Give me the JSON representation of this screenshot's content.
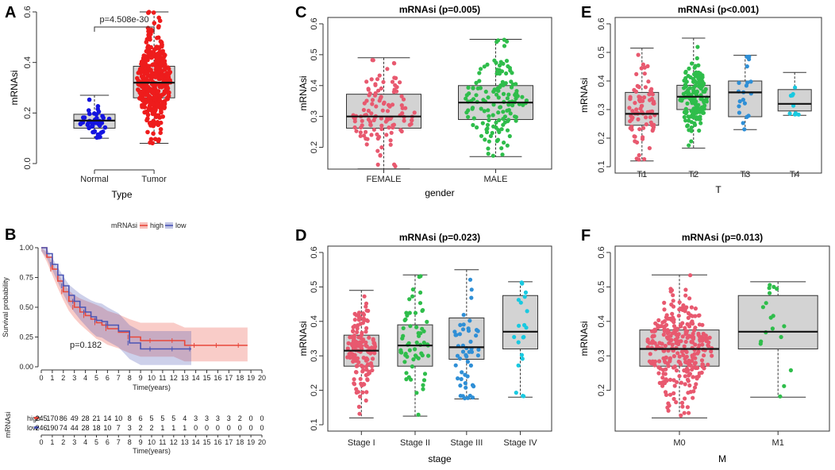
{
  "chart_data": [
    {
      "id": "A",
      "panel_label": "A",
      "type": "boxplot",
      "title": "",
      "xlabel": "Type",
      "ylabel": "mRNAsi",
      "ylim": [
        0,
        0.6
      ],
      "yticks": [
        0.0,
        0.2,
        0.4,
        0.6
      ],
      "annotation": "p=4.508e-30",
      "groups": [
        {
          "name": "Normal",
          "color": "#1515e0",
          "q1": 0.14,
          "median": 0.17,
          "q3": 0.195,
          "min": 0.1,
          "max": 0.27,
          "n": 45
        },
        {
          "name": "Tumor",
          "color": "#ee1c1c",
          "q1": 0.26,
          "median": 0.32,
          "q3": 0.385,
          "min": 0.08,
          "max": 0.6,
          "n": 420
        }
      ]
    },
    {
      "id": "C",
      "panel_label": "C",
      "type": "boxplot",
      "title": "mRNAsi (p=0.005)",
      "xlabel": "gender",
      "ylabel": "mRNAsi",
      "ylim": [
        0.15,
        0.6
      ],
      "yticks": [
        0.2,
        0.3,
        0.4,
        0.5,
        0.6
      ],
      "groups": [
        {
          "name": "FEMALE",
          "color": "#e8596f",
          "q1": 0.262,
          "median": 0.3,
          "q3": 0.372,
          "min": 0.13,
          "max": 0.49,
          "n": 120
        },
        {
          "name": "MALE",
          "color": "#2fbd4b",
          "q1": 0.29,
          "median": 0.345,
          "q3": 0.4,
          "min": 0.17,
          "max": 0.55,
          "n": 140
        }
      ]
    },
    {
      "id": "E",
      "panel_label": "E",
      "type": "boxplot",
      "title": "mRNAsi (p<0.001)",
      "xlabel": "T",
      "ylabel": "mRNAsi",
      "ylim": [
        0.1,
        0.6
      ],
      "yticks": [
        0.1,
        0.2,
        0.3,
        0.4,
        0.5,
        0.6
      ],
      "groups": [
        {
          "name": "T1",
          "color": "#e8596f",
          "q1": 0.245,
          "median": 0.285,
          "q3": 0.36,
          "min": 0.12,
          "max": 0.515,
          "n": 80
        },
        {
          "name": "T2",
          "color": "#2fbd4b",
          "q1": 0.3,
          "median": 0.345,
          "q3": 0.385,
          "min": 0.165,
          "max": 0.55,
          "n": 150
        },
        {
          "name": "T3",
          "color": "#2f8fd6",
          "q1": 0.275,
          "median": 0.36,
          "q3": 0.4,
          "min": 0.23,
          "max": 0.49,
          "n": 20
        },
        {
          "name": "T4",
          "color": "#19c9e0",
          "q1": 0.295,
          "median": 0.32,
          "q3": 0.37,
          "min": 0.28,
          "max": 0.43,
          "n": 10
        }
      ]
    },
    {
      "id": "B",
      "panel_label": "B",
      "type": "line",
      "title": "",
      "xlabel": "Time(years)",
      "ylabel": "Survival probability",
      "xlim": [
        0,
        20
      ],
      "ylim": [
        0,
        1
      ],
      "xticks": [
        0,
        1,
        2,
        3,
        4,
        5,
        6,
        7,
        8,
        9,
        10,
        11,
        12,
        13,
        14,
        15,
        16,
        17,
        18,
        19,
        20
      ],
      "yticks": [
        "0.00",
        "0.25",
        "0.50",
        "0.75",
        "1.00"
      ],
      "annotation": "p=0.182",
      "legend_title": "mRNAsi",
      "legend": [
        "high",
        "low"
      ],
      "series": [
        {
          "name": "high",
          "color": "#e8473a",
          "x": [
            0,
            0.5,
            1,
            1.5,
            2,
            2.5,
            3,
            3.5,
            4,
            4.5,
            5,
            5.5,
            6,
            7,
            8,
            9,
            10,
            11,
            12,
            13,
            14,
            15,
            16,
            17,
            18,
            18.7
          ],
          "y": [
            1,
            0.92,
            0.82,
            0.72,
            0.63,
            0.55,
            0.5,
            0.46,
            0.43,
            0.4,
            0.37,
            0.35,
            0.32,
            0.29,
            0.25,
            0.22,
            0.22,
            0.22,
            0.22,
            0.18,
            0.18,
            0.18,
            0.18,
            0.18,
            0.18,
            0.18
          ]
        },
        {
          "name": "low",
          "color": "#4a55b5",
          "x": [
            0,
            0.5,
            1,
            1.5,
            2,
            2.5,
            3,
            3.5,
            4,
            4.5,
            5,
            5.5,
            6,
            7,
            8,
            9,
            10,
            11,
            12,
            13,
            13.6
          ],
          "y": [
            1,
            0.95,
            0.86,
            0.77,
            0.68,
            0.6,
            0.55,
            0.5,
            0.46,
            0.42,
            0.39,
            0.38,
            0.35,
            0.3,
            0.2,
            0.15,
            0.15,
            0.15,
            0.15,
            0.15,
            0.15
          ]
        }
      ],
      "risk_table": {
        "label": "mRNAsi",
        "xlabel": "Time(years)",
        "rows": [
          {
            "name": "high",
            "color": "#e8473a",
            "values": [
              "245",
              "170",
              "86",
              "49",
              "28",
              "21",
              "14",
              "10",
              "8",
              "6",
              "5",
              "5",
              "5",
              "4",
              "3",
              "3",
              "3",
              "3",
              "2",
              "0",
              "0"
            ]
          },
          {
            "name": "low",
            "color": "#4a55b5",
            "values": [
              "246",
              "190",
              "74",
              "44",
              "28",
              "18",
              "10",
              "7",
              "3",
              "2",
              "2",
              "1",
              "1",
              "1",
              "0",
              "0",
              "0",
              "0",
              "0",
              "0",
              "0"
            ]
          }
        ]
      }
    },
    {
      "id": "D",
      "panel_label": "D",
      "type": "boxplot",
      "title": "mRNAsi (p=0.023)",
      "xlabel": "stage",
      "ylabel": "mRNAsi",
      "ylim": [
        0.1,
        0.6
      ],
      "yticks": [
        0.1,
        0.2,
        0.3,
        0.4,
        0.5,
        0.6
      ],
      "groups": [
        {
          "name": "Stage I",
          "color": "#e8596f",
          "q1": 0.27,
          "median": 0.315,
          "q3": 0.36,
          "min": 0.12,
          "max": 0.49,
          "n": 150
        },
        {
          "name": "Stage II",
          "color": "#2fbd4b",
          "q1": 0.27,
          "median": 0.33,
          "q3": 0.39,
          "min": 0.125,
          "max": 0.535,
          "n": 60
        },
        {
          "name": "Stage III",
          "color": "#2f8fd6",
          "q1": 0.29,
          "median": 0.325,
          "q3": 0.41,
          "min": 0.175,
          "max": 0.55,
          "n": 50
        },
        {
          "name": "Stage IV",
          "color": "#19c9e0",
          "q1": 0.32,
          "median": 0.37,
          "q3": 0.475,
          "min": 0.18,
          "max": 0.515,
          "n": 20
        }
      ]
    },
    {
      "id": "F",
      "panel_label": "F",
      "type": "boxplot",
      "title": "mRNAsi (p=0.013)",
      "xlabel": "M",
      "ylabel": "mRNAsi",
      "ylim": [
        0.1,
        0.6
      ],
      "yticks": [
        0.2,
        0.3,
        0.4,
        0.5,
        0.6
      ],
      "groups": [
        {
          "name": "M0",
          "color": "#e8596f",
          "q1": 0.27,
          "median": 0.32,
          "q3": 0.375,
          "min": 0.12,
          "max": 0.535,
          "n": 300
        },
        {
          "name": "M1",
          "color": "#2fbd4b",
          "q1": 0.32,
          "median": 0.37,
          "q3": 0.475,
          "min": 0.18,
          "max": 0.515,
          "n": 18
        }
      ]
    }
  ]
}
